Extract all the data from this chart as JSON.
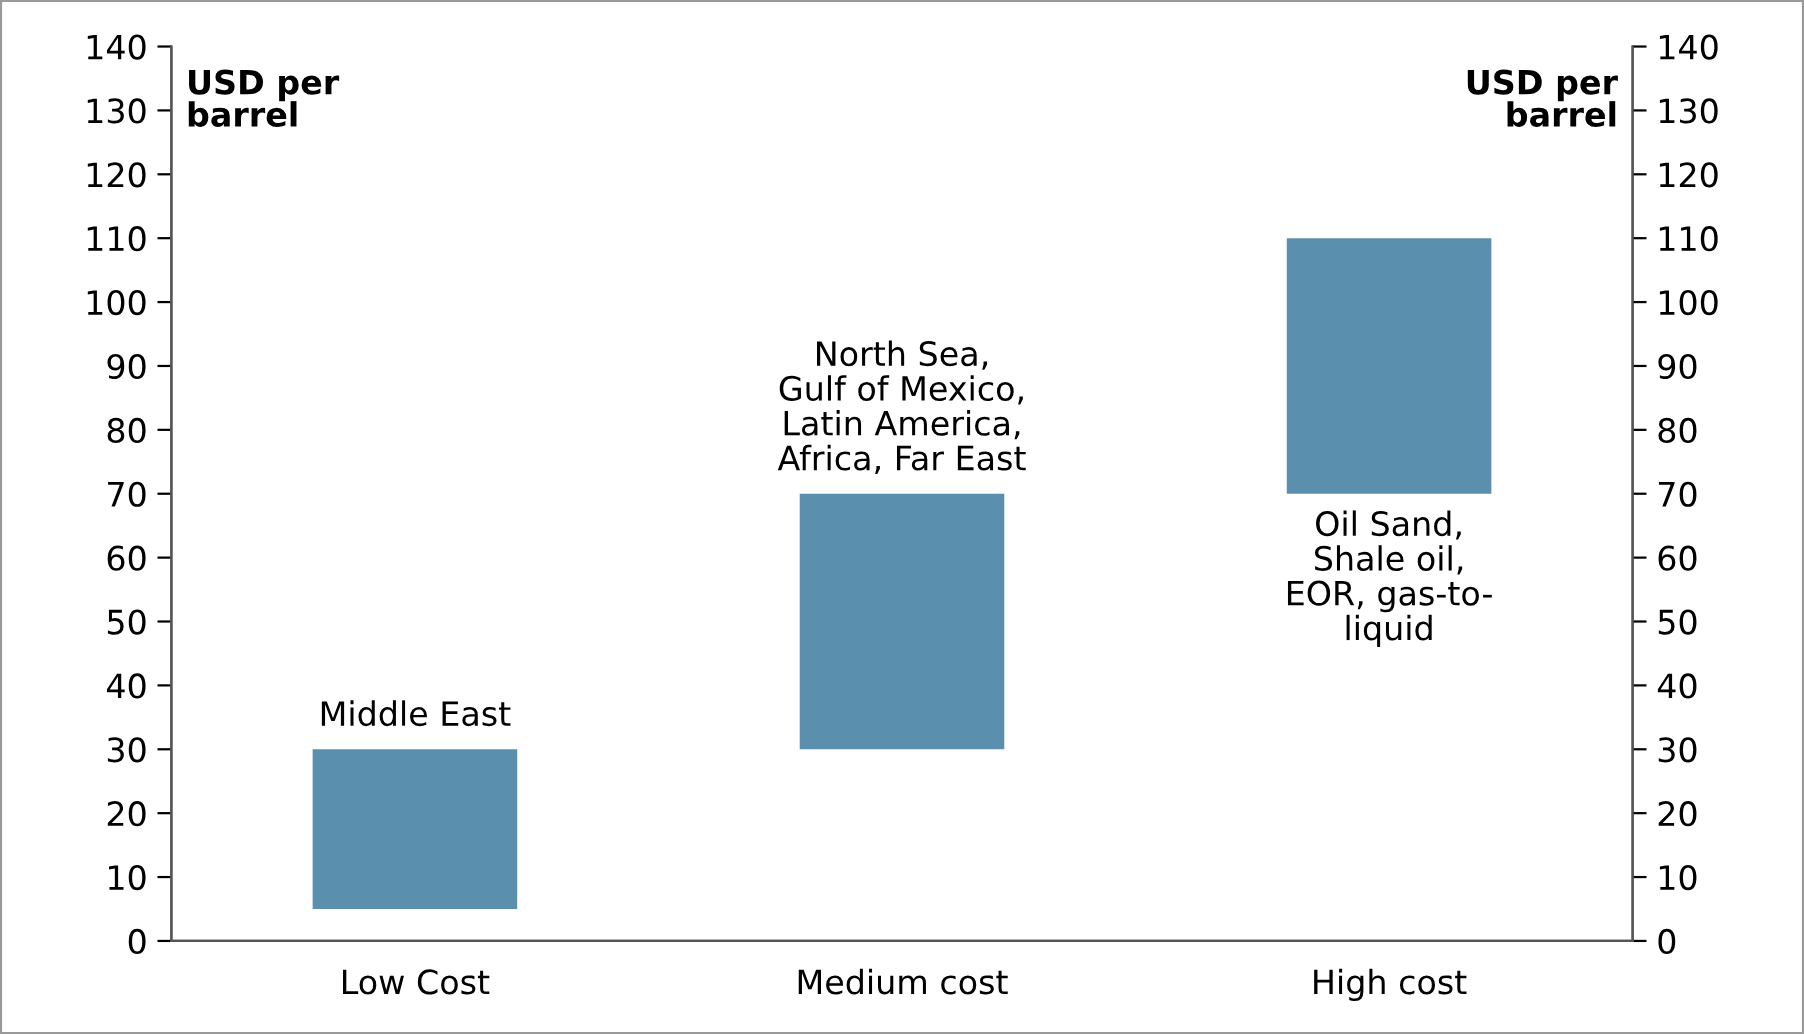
{
  "chart_data": {
    "type": "bar",
    "ylabel": "USD per\nbarrel",
    "y2label": "USD per\nbarrel",
    "categories": [
      "Low Cost",
      "Medium cost",
      "High cost"
    ],
    "series": [
      {
        "color": "#5b8fae",
        "values": [
          25,
          40,
          40
        ],
        "base": [
          5,
          30,
          70
        ]
      }
    ],
    "ylim": [
      0,
      140
    ],
    "yticks": [
      0,
      10,
      20,
      30,
      40,
      50,
      60,
      70,
      80,
      90,
      100,
      110,
      120,
      130,
      140
    ],
    "y2lim": [
      0,
      140
    ],
    "y2ticks": [
      0,
      10,
      20,
      30,
      40,
      50,
      60,
      70,
      80,
      90,
      100,
      110,
      120,
      130,
      140
    ],
    "grid": false,
    "legend": false,
    "annotations": [
      "Middle East",
      "North Sea,\nGulf of Mexico,\nLatin America,\nAfrica, Far East",
      "Oil Sand,\nShale oil,\nEOR, gas-to-\nliquid"
    ]
  }
}
